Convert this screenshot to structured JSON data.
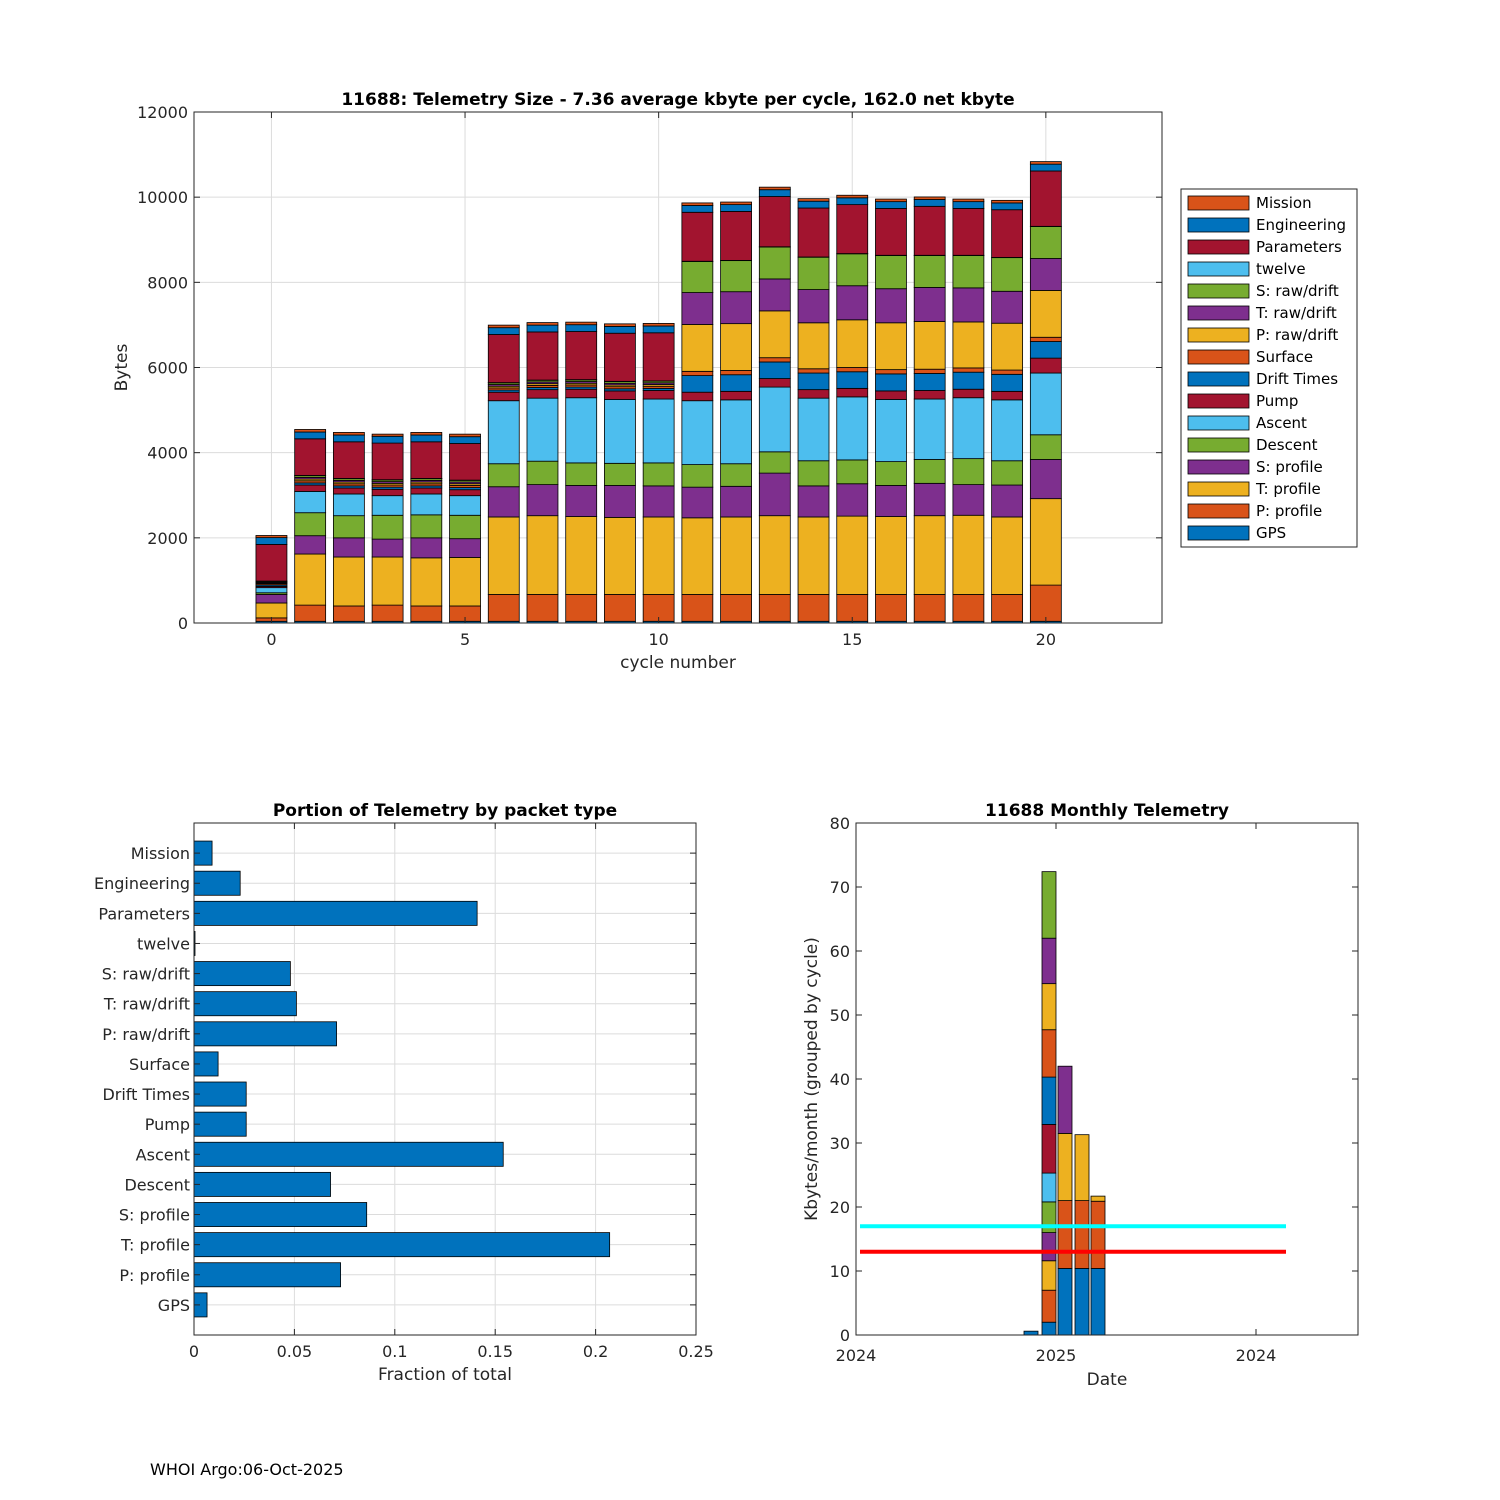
{
  "footer": "WHOI Argo:06-Oct-2025",
  "colors": {
    "GPS": "#0072bd",
    "P: profile": "#d95319",
    "T: profile": "#edb120",
    "S: profile": "#7e2f8e",
    "Descent": "#77ac30",
    "Ascent": "#4dbeee",
    "Pump": "#a2142f",
    "Drift Times": "#0072bd",
    "Surface": "#d95319",
    "P: raw/drift": "#edb120",
    "T: raw/drift": "#7e2f8e",
    "S: raw/drift": "#77ac30",
    "twelve": "#4dbeee",
    "Parameters": "#a2142f",
    "Engineering": "#0072bd",
    "Mission": "#d95319",
    "cyan_line": "#00ffff",
    "red_line": "#ff0000",
    "bar_blue": "#0072bd"
  },
  "chart_data": [
    {
      "type": "bar",
      "stacked": true,
      "title": "11688: Telemetry Size - 7.36 average kbyte per cycle,  162.0 net kbyte",
      "xlabel": "cycle number",
      "ylabel": "Bytes",
      "xlim": [
        -2,
        23
      ],
      "ylim": [
        0,
        12000
      ],
      "xticks": [
        0,
        5,
        10,
        15,
        20
      ],
      "yticks": [
        0,
        2000,
        4000,
        6000,
        8000,
        10000,
        12000
      ],
      "grid": true,
      "legend_position": "outside-right",
      "legend": [
        "Mission",
        "Engineering",
        "Parameters",
        "twelve",
        "S: raw/drift",
        "T: raw/drift",
        "P: raw/drift",
        "Surface",
        "Drift Times",
        "Pump",
        "Ascent",
        "Descent",
        "S: profile",
        "T: profile",
        "P: profile",
        "GPS"
      ],
      "categories": [
        0,
        1,
        2,
        3,
        4,
        5,
        6,
        7,
        8,
        9,
        10,
        11,
        12,
        13,
        14,
        15,
        16,
        17,
        18,
        19,
        20
      ],
      "series": [
        {
          "name": "GPS",
          "values": [
            40,
            40,
            40,
            40,
            40,
            40,
            40,
            40,
            40,
            40,
            40,
            40,
            40,
            40,
            40,
            40,
            40,
            40,
            40,
            40,
            40
          ]
        },
        {
          "name": "P: profile",
          "values": [
            80,
            380,
            360,
            380,
            360,
            360,
            630,
            630,
            630,
            630,
            630,
            630,
            630,
            630,
            630,
            630,
            630,
            630,
            630,
            630,
            850
          ]
        },
        {
          "name": "T: profile",
          "values": [
            350,
            1200,
            1150,
            1130,
            1130,
            1140,
            1820,
            1850,
            1830,
            1810,
            1820,
            1800,
            1820,
            1850,
            1820,
            1840,
            1830,
            1850,
            1860,
            1820,
            2030
          ]
        },
        {
          "name": "S: profile",
          "values": [
            200,
            430,
            450,
            420,
            470,
            440,
            710,
            730,
            730,
            750,
            730,
            720,
            720,
            1000,
            730,
            760,
            730,
            760,
            720,
            750,
            920
          ]
        },
        {
          "name": "Descent",
          "values": [
            40,
            540,
            520,
            560,
            540,
            550,
            540,
            550,
            530,
            520,
            540,
            530,
            530,
            500,
            590,
            560,
            560,
            560,
            610,
            570,
            580
          ]
        },
        {
          "name": "Ascent",
          "values": [
            120,
            500,
            510,
            460,
            490,
            460,
            1480,
            1480,
            1530,
            1500,
            1500,
            1500,
            1500,
            1520,
            1470,
            1480,
            1460,
            1420,
            1430,
            1430,
            1450
          ]
        },
        {
          "name": "Pump",
          "values": [
            30,
            150,
            140,
            150,
            140,
            140,
            200,
            200,
            200,
            200,
            200,
            200,
            200,
            200,
            200,
            200,
            200,
            200,
            200,
            200,
            350
          ]
        },
        {
          "name": "Drift Times",
          "values": [
            30,
            50,
            50,
            50,
            50,
            50,
            50,
            50,
            50,
            50,
            50,
            390,
            390,
            390,
            390,
            390,
            400,
            400,
            400,
            400,
            390
          ]
        },
        {
          "name": "Surface",
          "values": [
            30,
            50,
            50,
            50,
            50,
            50,
            50,
            50,
            50,
            50,
            50,
            100,
            100,
            100,
            100,
            100,
            100,
            100,
            100,
            100,
            100
          ]
        },
        {
          "name": "P: raw/drift",
          "values": [
            20,
            40,
            40,
            40,
            40,
            40,
            40,
            40,
            40,
            40,
            40,
            1100,
            1100,
            1100,
            1080,
            1120,
            1100,
            1120,
            1080,
            1100,
            1100
          ]
        },
        {
          "name": "T: raw/drift",
          "values": [
            20,
            40,
            40,
            40,
            40,
            40,
            40,
            40,
            40,
            40,
            40,
            750,
            750,
            750,
            780,
            800,
            800,
            800,
            800,
            750,
            750
          ]
        },
        {
          "name": "S: raw/drift",
          "values": [
            20,
            40,
            40,
            40,
            40,
            40,
            40,
            40,
            40,
            40,
            40,
            730,
            730,
            750,
            760,
            750,
            780,
            750,
            760,
            790,
            750
          ]
        },
        {
          "name": "twelve",
          "values": [
            5,
            5,
            5,
            5,
            5,
            5,
            5,
            5,
            5,
            5,
            5,
            5,
            5,
            5,
            5,
            5,
            5,
            5,
            5,
            5,
            5
          ]
        },
        {
          "name": "Parameters",
          "values": [
            860,
            860,
            860,
            860,
            860,
            860,
            1130,
            1130,
            1130,
            1130,
            1130,
            1150,
            1150,
            1180,
            1150,
            1150,
            1100,
            1150,
            1100,
            1120,
            1300
          ]
        },
        {
          "name": "Engineering",
          "values": [
            160,
            160,
            160,
            160,
            160,
            160,
            160,
            160,
            160,
            160,
            160,
            160,
            160,
            160,
            160,
            160,
            160,
            160,
            160,
            160,
            160
          ]
        },
        {
          "name": "Mission",
          "values": [
            50,
            60,
            60,
            50,
            60,
            60,
            60,
            60,
            60,
            60,
            60,
            60,
            60,
            60,
            60,
            60,
            60,
            60,
            60,
            60,
            60
          ]
        }
      ]
    },
    {
      "type": "bar",
      "orientation": "horizontal",
      "title": "Portion of Telemetry by packet type",
      "xlabel": "Fraction of total",
      "ylabel": "",
      "xlim": [
        0,
        0.25
      ],
      "xticks": [
        0,
        0.05,
        0.1,
        0.15,
        0.2,
        0.25
      ],
      "xtick_labels": [
        "0",
        "0.05",
        "0.1",
        "0.15",
        "0.2",
        "0.25"
      ],
      "grid": true,
      "categories": [
        "Mission",
        "Engineering",
        "Parameters",
        "twelve",
        "S: raw/drift",
        "T: raw/drift",
        "P: raw/drift",
        "Surface",
        "Drift Times",
        "Pump",
        "Ascent",
        "Descent",
        "S: profile",
        "T: profile",
        "P: profile",
        "GPS"
      ],
      "values": [
        0.009,
        0.023,
        0.141,
        0.0005,
        0.048,
        0.051,
        0.071,
        0.012,
        0.026,
        0.026,
        0.154,
        0.068,
        0.086,
        0.207,
        0.073,
        0.0065
      ]
    },
    {
      "type": "bar",
      "stacked": true,
      "title": "11688 Monthly Telemetry",
      "xlabel": "Date",
      "ylabel": "Kbytes/month (grouped by cycle)",
      "ylim": [
        0,
        80
      ],
      "yticks": [
        0,
        10,
        20,
        30,
        40,
        50,
        60,
        70,
        80
      ],
      "xtick_labels": [
        "2024",
        "2025",
        "2024"
      ],
      "grid": false,
      "hlines": [
        {
          "y": 17,
          "color": "cyan"
        },
        {
          "y": 13,
          "color": "red"
        }
      ],
      "bars": [
        {
          "x": 0,
          "segments": [
            0.6
          ]
        },
        {
          "x": 1,
          "segments": [
            2,
            5,
            4.6,
            4.4,
            4.8,
            4.5,
            7.6,
            7.4,
            7.4,
            7.2,
            7.1,
            10.4
          ]
        },
        {
          "x": 2,
          "segments": [
            10.4,
            10.6,
            10.5,
            10.5
          ]
        },
        {
          "x": 3,
          "segments": [
            10.4,
            10.6,
            10.3
          ]
        },
        {
          "x": 4,
          "segments": [
            10.4,
            10.5,
            0.8
          ]
        }
      ]
    }
  ]
}
